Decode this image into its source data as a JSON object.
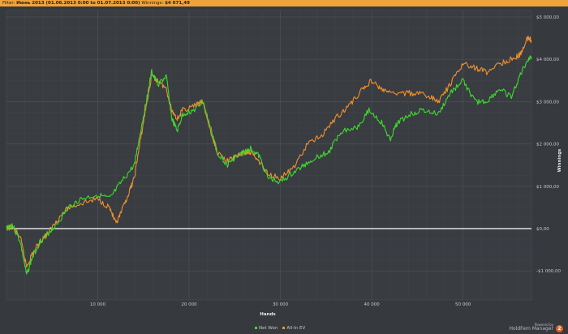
{
  "filter_bar": {
    "filter_label": "Filter:",
    "filter_value": "Июнь 2013 (01.06.2013 0:00 to 01.07.2013 0:00)",
    "winnings_label": "Winnings:",
    "winnings_value": "$4 071,49"
  },
  "chart_data": {
    "type": "line",
    "xlabel": "Hands",
    "ylabel": "Winnings",
    "xlim": [
      0,
      57500
    ],
    "ylim": [
      -1300,
      5100
    ],
    "x_ticks": [
      10000,
      20000,
      30000,
      40000,
      50000
    ],
    "x_tick_labels": [
      "10 000",
      "20 000",
      "30 000",
      "40 000",
      "50 000"
    ],
    "y_ticks": [
      -1000,
      0,
      1000,
      2000,
      3000,
      4000,
      5000
    ],
    "y_tick_labels": [
      "-$1 000,00",
      "$0,00",
      "$1 000,00",
      "$2 000,00",
      "$3 000,00",
      "$4 000,00",
      "$5 000,00"
    ],
    "y_axis_side": "right",
    "grid": true,
    "legend_position": "bottom",
    "series": [
      {
        "name": "Net Won",
        "color": "#3ddc2c",
        "x": [
          0,
          600,
          1500,
          2200,
          2800,
          3700,
          4600,
          5500,
          6800,
          8200,
          10000,
          11300,
          12600,
          14000,
          14600,
          15300,
          15900,
          16600,
          17500,
          18100,
          18700,
          19300,
          20600,
          21500,
          22600,
          23100,
          24200,
          25100,
          26000,
          26800,
          27700,
          28600,
          30000,
          31300,
          32600,
          34000,
          35300,
          36600,
          38400,
          39700,
          41100,
          42000,
          42800,
          44200,
          45500,
          47300,
          48600,
          50000,
          51300,
          52600,
          54000,
          55300,
          56200,
          57100,
          57500
        ],
        "y": [
          0,
          100,
          -300,
          -1100,
          -700,
          -300,
          -100,
          100,
          500,
          700,
          800,
          700,
          1100,
          1500,
          2200,
          3000,
          3700,
          3400,
          3600,
          2600,
          2300,
          2700,
          2800,
          3000,
          2200,
          1800,
          1500,
          1700,
          1800,
          1900,
          1700,
          1200,
          1100,
          1300,
          1500,
          1700,
          1800,
          2300,
          2400,
          2800,
          2500,
          2100,
          2500,
          2700,
          2800,
          2700,
          3200,
          3500,
          3000,
          3000,
          3300,
          3100,
          3600,
          4000,
          4071
        ]
      },
      {
        "name": "All-In EV",
        "color": "#f0902e",
        "x": [
          0,
          600,
          1500,
          2200,
          2800,
          3700,
          4600,
          5500,
          6800,
          8200,
          10000,
          11300,
          12000,
          12600,
          13500,
          14000,
          14600,
          15300,
          15900,
          16600,
          17500,
          18100,
          18700,
          19300,
          20600,
          21500,
          22600,
          23100,
          24200,
          25100,
          26000,
          26800,
          27700,
          28600,
          30000,
          31300,
          33000,
          34500,
          36000,
          37500,
          39000,
          40000,
          41000,
          42000,
          43500,
          45000,
          46500,
          47300,
          48600,
          50000,
          51300,
          52600,
          54000,
          55300,
          56200,
          57100,
          57500
        ],
        "y": [
          0,
          50,
          -200,
          -900,
          -600,
          -300,
          -100,
          200,
          500,
          600,
          700,
          500,
          100,
          400,
          900,
          1200,
          2000,
          2900,
          3600,
          3500,
          3300,
          2800,
          2600,
          2800,
          2900,
          3000,
          2100,
          1800,
          1600,
          1700,
          1800,
          1800,
          1600,
          1300,
          1200,
          1400,
          2000,
          2200,
          2600,
          2900,
          3300,
          3500,
          3300,
          3200,
          3200,
          3200,
          3100,
          3000,
          3400,
          3900,
          3800,
          3700,
          3900,
          4000,
          4100,
          4500,
          4450
        ]
      }
    ]
  }
}
